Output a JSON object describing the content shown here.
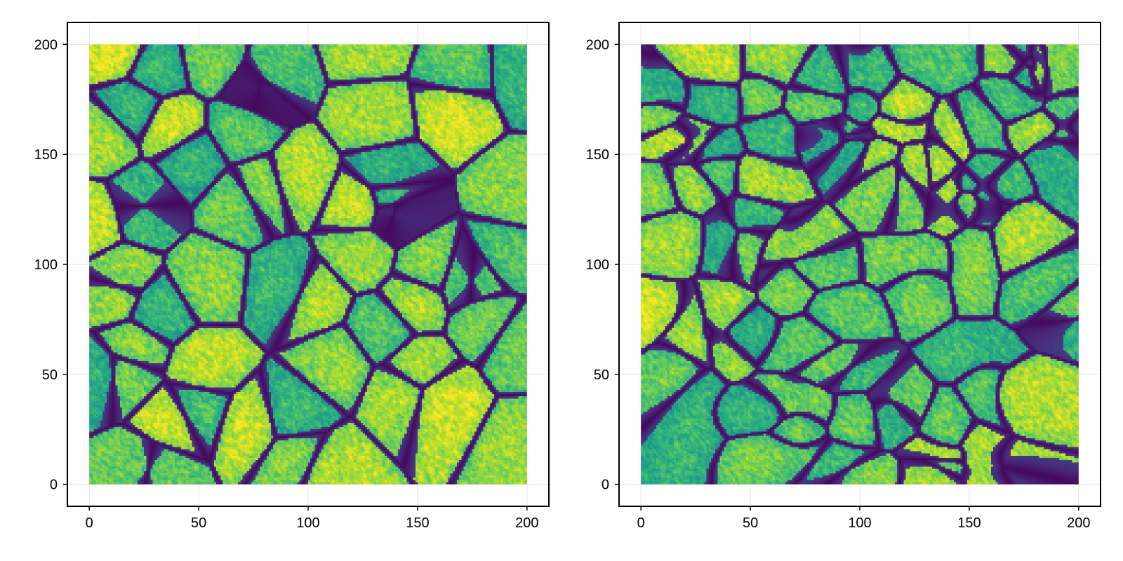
{
  "chart_data": [
    {
      "type": "heatmap",
      "title": "",
      "xlabel": "",
      "ylabel": "",
      "xlim": [
        -10,
        210
      ],
      "ylim": [
        -10,
        210
      ],
      "data_extent": {
        "x": [
          0,
          200
        ],
        "y": [
          0,
          200
        ]
      },
      "xticks": [
        "0",
        "50",
        "100",
        "150",
        "200"
      ],
      "yticks": [
        "0",
        "50",
        "100",
        "150",
        "200"
      ],
      "colormap": "viridis",
      "grid": true,
      "content": "stone wall texture intensity"
    },
    {
      "type": "heatmap",
      "title": "",
      "xlabel": "",
      "ylabel": "",
      "xlim": [
        -10,
        210
      ],
      "ylim": [
        -10,
        210
      ],
      "data_extent": {
        "x": [
          0,
          200
        ],
        "y": [
          0,
          200
        ]
      },
      "xticks": [
        "0",
        "50",
        "100",
        "150",
        "200"
      ],
      "yticks": [
        "0",
        "50",
        "100",
        "150",
        "200"
      ],
      "colormap": "viridis",
      "grid": true,
      "content": "stone wall texture intensity"
    }
  ],
  "colors": {
    "frame": "#000000",
    "grid": "#e5e5e5",
    "viridis_low": "#440154",
    "viridis_mid": "#21918c",
    "viridis_high": "#fde725"
  }
}
